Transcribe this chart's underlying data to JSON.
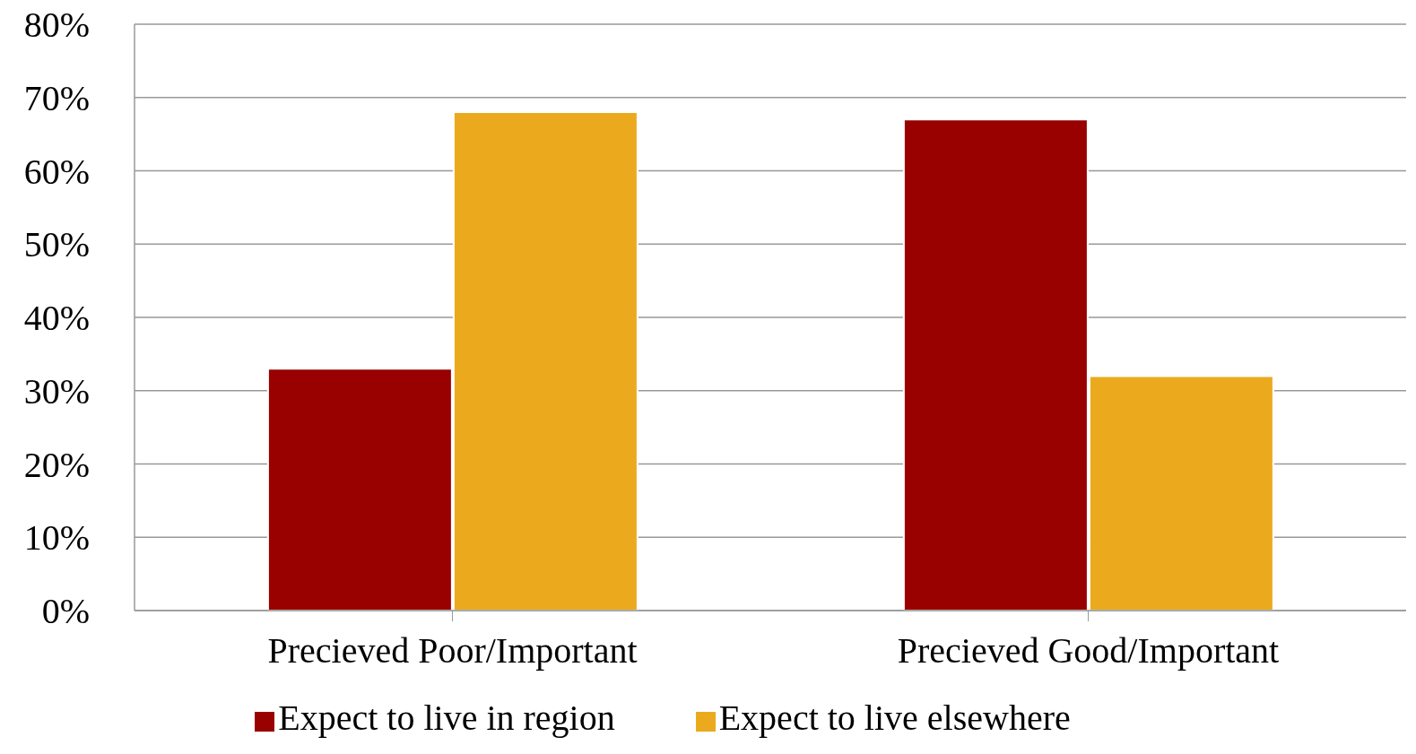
{
  "chart_data": {
    "type": "bar",
    "categories": [
      "Precieved Poor/Important",
      "Precieved Good/Important"
    ],
    "series": [
      {
        "name": "Expect to live in region",
        "color": "#990000",
        "values": [
          33,
          67
        ]
      },
      {
        "name": "Expect to live elsewhere",
        "color": "#ebaa1e",
        "values": [
          68,
          32
        ]
      }
    ],
    "ylim": [
      0,
      80
    ],
    "yticks": [
      {
        "value": 0,
        "label": "0%"
      },
      {
        "value": 10,
        "label": "10%"
      },
      {
        "value": 20,
        "label": "20%"
      },
      {
        "value": 30,
        "label": "30%"
      },
      {
        "value": 40,
        "label": "40%"
      },
      {
        "value": 50,
        "label": "50%"
      },
      {
        "value": 60,
        "label": "60%"
      },
      {
        "value": 70,
        "label": "70%"
      },
      {
        "value": 80,
        "label": "80%"
      }
    ],
    "grid": "y",
    "legend": "bottom"
  }
}
